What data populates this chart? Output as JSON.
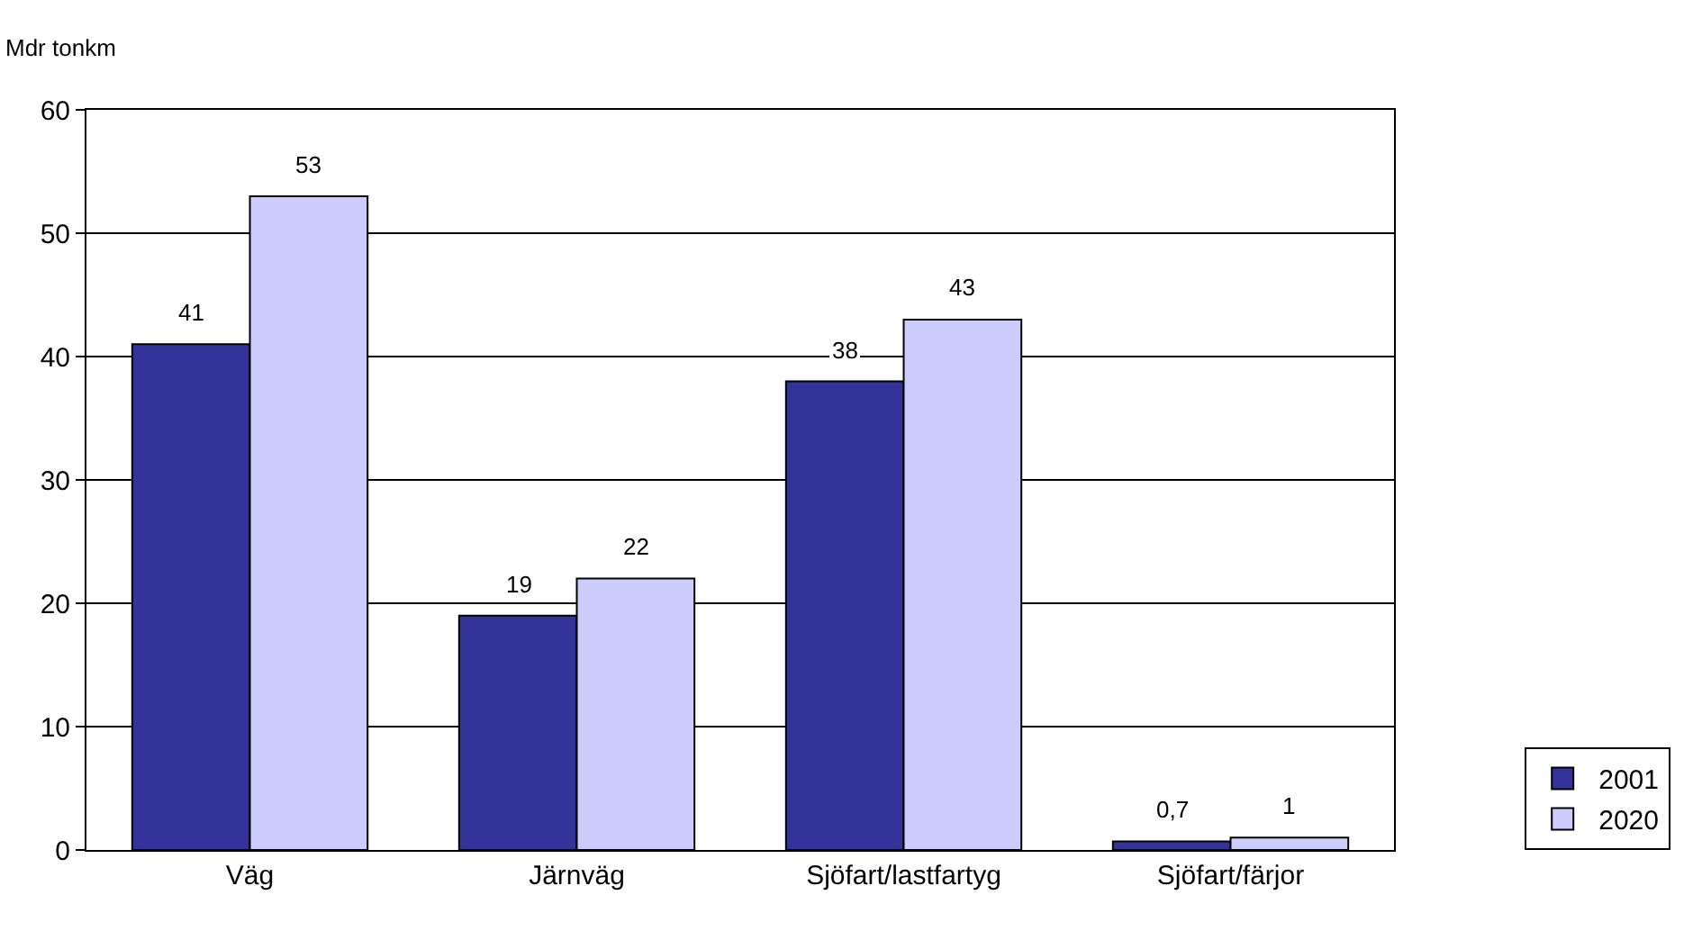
{
  "chart_data": {
    "type": "bar",
    "ylabel": "Mdr tonkm",
    "categories": [
      "Väg",
      "Järnväg",
      "Sjöfart/lastfartyg",
      "Sjöfart/färjor"
    ],
    "series": [
      {
        "name": "2001",
        "color": "#333399",
        "values": [
          41,
          19,
          38,
          0.7
        ],
        "value_labels": [
          "41",
          "19",
          "38",
          "0,7"
        ]
      },
      {
        "name": "2020",
        "color": "#ccccff",
        "values": [
          53,
          22,
          43,
          1
        ],
        "value_labels": [
          "53",
          "22",
          "43",
          "1"
        ]
      }
    ],
    "ylim": [
      0,
      60
    ],
    "yticks": [
      0,
      10,
      20,
      30,
      40,
      50,
      60
    ],
    "grid": "y",
    "legend": "bottom right"
  }
}
